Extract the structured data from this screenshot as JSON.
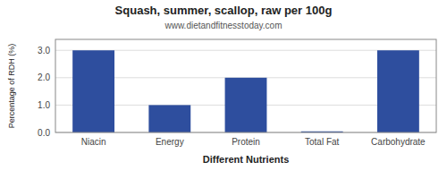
{
  "chart_data": {
    "type": "bar",
    "title": "Squash, summer, scallop, raw per 100g",
    "subtitle": "www.dietandfitnesstoday.com",
    "xlabel": "Different Nutrients",
    "ylabel": "Percentage of RDH (%)",
    "categories": [
      "Niacin",
      "Energy",
      "Protein",
      "Total Fat",
      "Carbohydrate"
    ],
    "values": [
      3.0,
      1.0,
      2.0,
      0.04,
      3.0
    ],
    "color": "#2e4e9e",
    "ylim": [
      0,
      3.4
    ],
    "yticks": [
      {
        "value": 0.0,
        "label": "0.0"
      },
      {
        "value": 1.0,
        "label": "1.0"
      },
      {
        "value": 2.0,
        "label": "2.0"
      },
      {
        "value": 3.0,
        "label": "3.0"
      }
    ],
    "grid": true
  }
}
